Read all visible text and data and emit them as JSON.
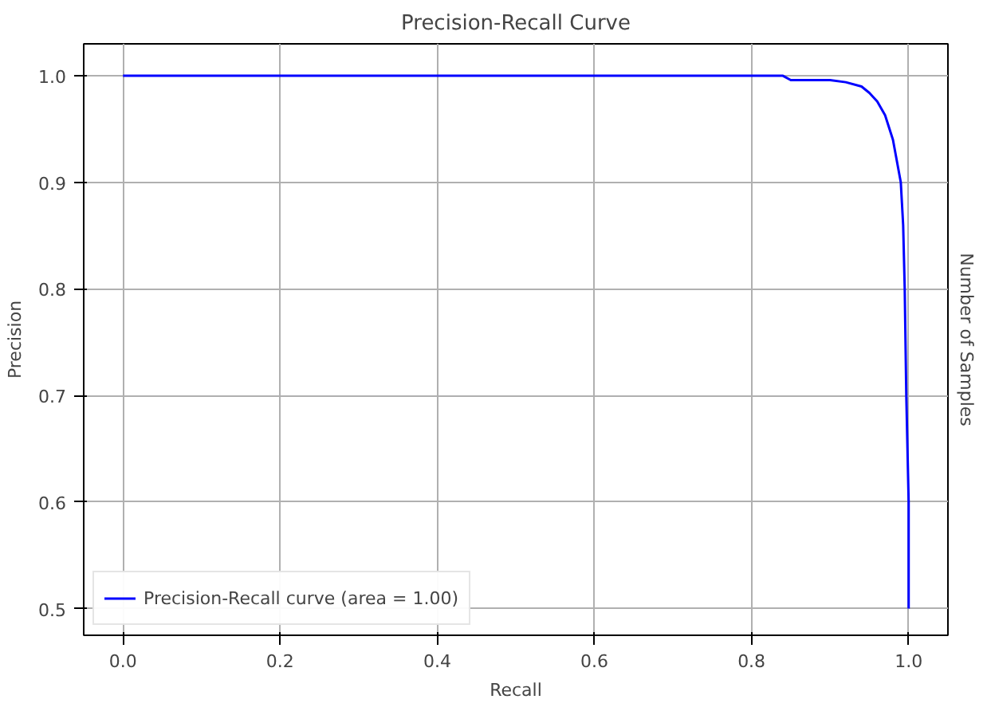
{
  "chart_data": {
    "type": "line",
    "title": "Precision-Recall Curve",
    "xlabel": "Recall",
    "ylabel": "Precision",
    "y2label": "Number of Samples",
    "x": [
      0.0,
      0.84,
      0.85,
      0.9,
      0.92,
      0.94,
      0.95,
      0.96,
      0.97,
      0.98,
      0.985,
      0.99,
      0.993,
      0.995,
      0.997,
      1.0,
      1.0
    ],
    "series": [
      {
        "name": "Precision-Recall curve (area = 1.00)",
        "color": "#0000ff",
        "values": [
          1.0,
          1.0,
          0.996,
          0.996,
          0.994,
          0.99,
          0.984,
          0.976,
          0.963,
          0.94,
          0.92,
          0.9,
          0.86,
          0.8,
          0.7,
          0.6,
          0.5
        ]
      }
    ],
    "xlim": [
      -0.05,
      1.05
    ],
    "ylim": [
      0.475,
      1.03
    ],
    "xticks": [
      {
        "value": 0,
        "label": "0.0"
      },
      0.2,
      0.4,
      0.6,
      0.8,
      {
        "value": 1,
        "label": "1.0"
      }
    ],
    "yticks": [
      0.5,
      0.6,
      0.7,
      0.8,
      0.9,
      {
        "value": 1,
        "label": "1.0"
      }
    ],
    "grid": true,
    "legend": "bottom left"
  }
}
